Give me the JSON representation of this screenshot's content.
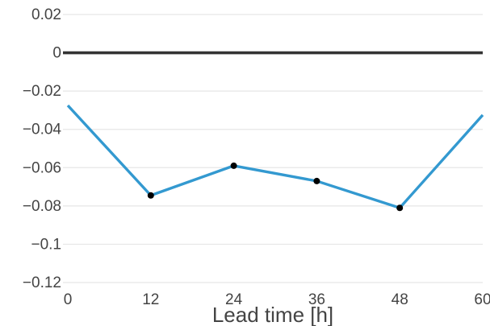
{
  "chart_data": {
    "type": "line",
    "title": "",
    "xlabel": "Lead time [h]",
    "ylabel": "",
    "x": [
      0,
      12,
      24,
      36,
      48,
      60
    ],
    "x_ticks": [
      0,
      12,
      24,
      36,
      48,
      60
    ],
    "x_tick_labels": [
      "0",
      "12",
      "24",
      "36",
      "48",
      "60"
    ],
    "xlim": [
      0,
      60
    ],
    "y_ticks": [
      0.02,
      0,
      -0.02,
      -0.04,
      -0.06,
      -0.08,
      -0.1,
      -0.12
    ],
    "y_tick_labels": [
      "0.02",
      "0",
      "−0.02",
      "−0.04",
      "−0.06",
      "−0.08",
      "−0.1",
      "−0.12"
    ],
    "ylim": [
      -0.12,
      0.02
    ],
    "grid": true,
    "reference_line": {
      "y": 0,
      "color": "#333333"
    },
    "series": [
      {
        "values": [
          -0.0275,
          -0.0745,
          -0.059,
          -0.067,
          -0.081,
          -0.0325
        ],
        "color": "#3399d0",
        "markers_at": [
          12,
          24,
          36,
          48
        ],
        "marker_color": "#000000"
      }
    ]
  }
}
